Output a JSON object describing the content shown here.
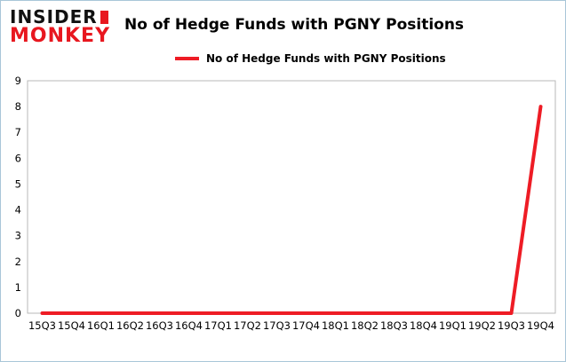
{
  "logo": {
    "line1": "INSIDER",
    "line2": "MONKEY"
  },
  "header": {
    "title": "No of Hedge Funds with PGNY Positions"
  },
  "legend": {
    "label": "No of Hedge Funds with PGNY Positions"
  },
  "colors": {
    "series": "#ee1c25",
    "plot_border": "#b9b9b9",
    "text": "#000000",
    "frame": "#a9c6d8"
  },
  "chart_data": {
    "type": "line",
    "title": "No of Hedge Funds with PGNY Positions",
    "categories": [
      "15Q3",
      "15Q4",
      "16Q1",
      "16Q2",
      "16Q3",
      "16Q4",
      "17Q1",
      "17Q2",
      "17Q3",
      "17Q4",
      "18Q1",
      "18Q2",
      "18Q3",
      "18Q4",
      "19Q1",
      "19Q2",
      "19Q3",
      "19Q4"
    ],
    "series": [
      {
        "name": "No of Hedge Funds with PGNY Positions",
        "color": "#ee1c25",
        "values": [
          0,
          0,
          0,
          0,
          0,
          0,
          0,
          0,
          0,
          0,
          0,
          0,
          0,
          0,
          0,
          0,
          0,
          8
        ]
      }
    ],
    "xlabel": "",
    "ylabel": "",
    "ylim": [
      0,
      9
    ],
    "yticks": [
      0,
      1,
      2,
      3,
      4,
      5,
      6,
      7,
      8,
      9
    ],
    "grid": false,
    "legend_position": "top"
  }
}
